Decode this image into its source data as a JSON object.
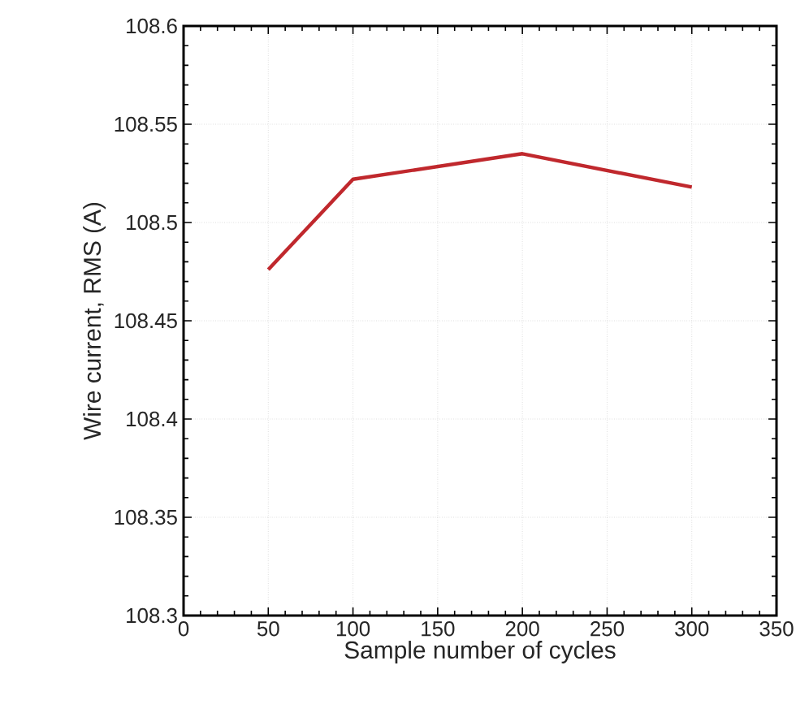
{
  "chart_data": {
    "type": "line",
    "xlabel": "Sample number of cycles",
    "ylabel": "Wire current, RMS (A)",
    "x": [
      50,
      100,
      200,
      300
    ],
    "series": [
      {
        "color": "#c0282d",
        "values": [
          108.476,
          108.522,
          108.535,
          108.518
        ]
      }
    ],
    "xlim": [
      0,
      350
    ],
    "xticks": [
      0,
      50,
      100,
      150,
      200,
      250,
      300,
      350
    ],
    "ylim": [
      108.3,
      108.6
    ],
    "yticks": [
      {
        "value": 108.3,
        "label": "108.3"
      },
      {
        "value": 108.35,
        "label": "108.35"
      },
      {
        "value": 108.4,
        "label": "108.4"
      },
      {
        "value": 108.45,
        "label": "108.45"
      },
      {
        "value": 108.5,
        "label": "108.5"
      },
      {
        "value": 108.55,
        "label": "108.55"
      },
      {
        "value": 108.6,
        "label": "108.6"
      }
    ],
    "grid": true,
    "marker": "none",
    "line_style": "solid"
  }
}
